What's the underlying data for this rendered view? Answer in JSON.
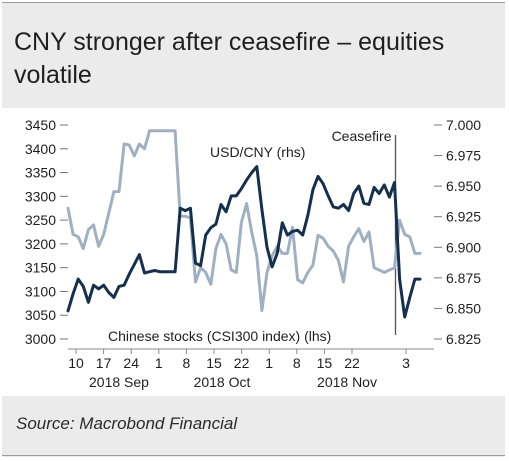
{
  "title": "CNY stronger after ceasefire – equities volatile",
  "source": "Source: Macrobond Financial",
  "colors": {
    "background": "#ebebeb",
    "plot": "#ffffff",
    "usdcny": "#14304f",
    "csi300": "#9fb0c3",
    "text": "#1f1f1f"
  },
  "chart_data": {
    "type": "line",
    "title": "CNY stronger after ceasefire – equities volatile",
    "ylim_left": [
      3000,
      3450
    ],
    "ylim_right": [
      6.825,
      7.0
    ],
    "left_ticks": [
      "3450",
      "3400",
      "3350",
      "3300",
      "3250",
      "3200",
      "3150",
      "3100",
      "3050",
      "3000"
    ],
    "right_ticks": [
      "7.000",
      "6.975",
      "6.950",
      "6.925",
      "6.900",
      "6.875",
      "6.850",
      "6.825"
    ],
    "x_day_ticks": [
      "10",
      "17",
      "24",
      "1",
      "8",
      "15",
      "22",
      "1",
      "8",
      "15",
      "22",
      "3"
    ],
    "x_month_labels": [
      "2018 Sep",
      "2018 Oct",
      "2018 Nov"
    ],
    "event_label": "Ceasefire",
    "event_index": 64,
    "series": [
      {
        "name": "USD/CNY (rhs)",
        "axis": "right",
        "values": [
          6.848,
          6.862,
          6.874,
          6.868,
          6.855,
          6.869,
          6.866,
          6.869,
          6.863,
          6.859,
          6.868,
          6.869,
          6.878,
          6.886,
          6.894,
          6.879,
          6.88,
          6.881,
          6.88,
          6.88,
          6.88,
          6.88,
          6.932,
          6.93,
          6.932,
          6.887,
          6.885,
          6.91,
          6.916,
          6.919,
          6.935,
          6.929,
          6.942,
          6.942,
          6.948,
          6.955,
          6.961,
          6.966,
          6.931,
          6.9,
          6.884,
          6.895,
          6.92,
          6.91,
          6.913,
          6.914,
          6.91,
          6.926,
          6.947,
          6.958,
          6.952,
          6.942,
          6.933,
          6.932,
          6.935,
          6.93,
          6.944,
          6.95,
          6.936,
          6.935,
          6.949,
          6.944,
          6.951,
          6.941,
          6.953,
          6.874,
          6.843,
          6.859,
          6.874,
          6.874
        ]
      },
      {
        "name": "Chinese stocks (CSI300 index) (lhs)",
        "axis": "left",
        "values": [
          3275,
          3220,
          3215,
          3190,
          3230,
          3240,
          3195,
          3220,
          3265,
          3310,
          3310,
          3410,
          3408,
          3385,
          3410,
          3400,
          3438,
          3438,
          3438,
          3438,
          3438,
          3438,
          3258,
          3258,
          3255,
          3120,
          3150,
          3140,
          3115,
          3190,
          3220,
          3200,
          3145,
          3140,
          3245,
          3285,
          3225,
          3175,
          3060,
          3140,
          3175,
          3195,
          3180,
          3180,
          3235,
          3125,
          3118,
          3140,
          3155,
          3218,
          3212,
          3195,
          3185,
          3165,
          3120,
          3195,
          3215,
          3232,
          3205,
          3225,
          3150,
          3145,
          3140,
          3145,
          3150,
          3250,
          3220,
          3215,
          3180,
          3180
        ]
      }
    ]
  }
}
